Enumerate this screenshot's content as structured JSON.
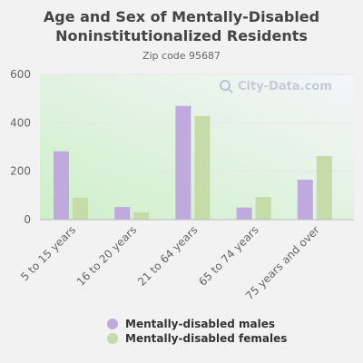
{
  "header": {
    "title_line1": "Age and Sex of Mentally-Disabled",
    "title_line2": "Noninstitutionalized Residents",
    "subtitle": "Zip code 95687"
  },
  "watermark": {
    "text": "City-Data.com",
    "icon": "magnifier-icon"
  },
  "colors": {
    "males": "#c0a9dc",
    "females": "#c5dba8",
    "axis": "#666666",
    "grid": "#e6e6e6",
    "bg_left": "#cdf0c8",
    "bg_right": "#f5f5fa"
  },
  "chart_data": {
    "type": "bar",
    "categories": [
      "5 to 15 years",
      "16 to 20 years",
      "21 to 64 years",
      "65 to 74 years",
      "75 years and over"
    ],
    "series": [
      {
        "name": "Mentally-disabled males",
        "values": [
          282,
          52,
          470,
          50,
          165
        ]
      },
      {
        "name": "Mentally-disabled females",
        "values": [
          90,
          30,
          428,
          93,
          263
        ]
      }
    ],
    "yticks": [
      0,
      200,
      400,
      600
    ],
    "ylim": [
      0,
      600
    ],
    "grid": true,
    "legend_position": "bottom"
  }
}
